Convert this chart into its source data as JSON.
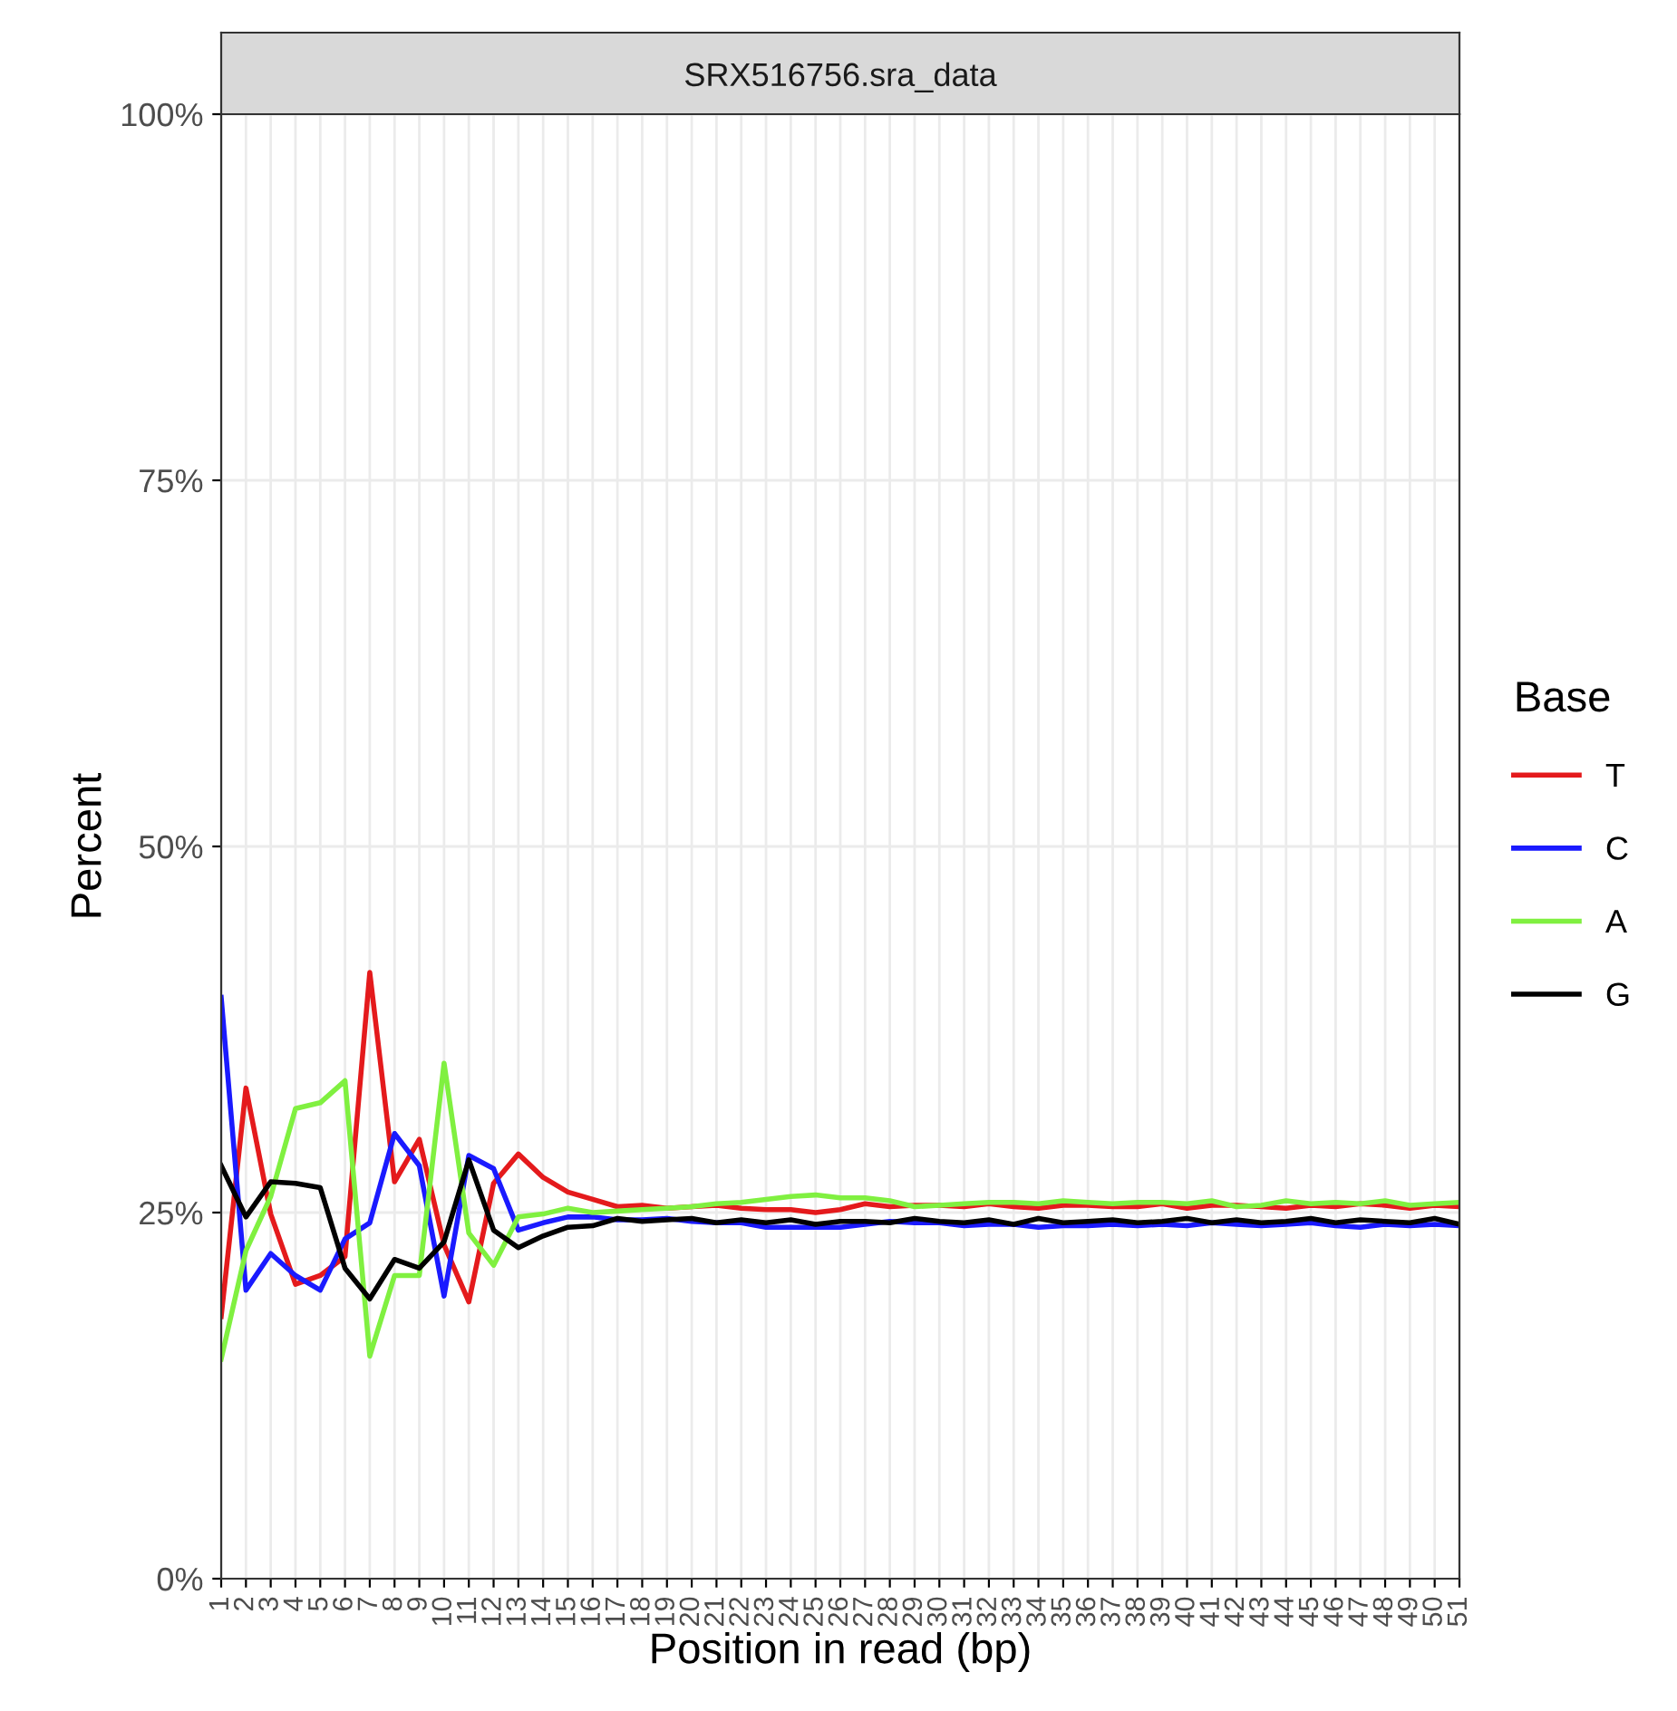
{
  "chart_data": {
    "type": "line",
    "title": "SRX516756.sra_data",
    "xlabel": "Position in read (bp)",
    "ylabel": "Percent",
    "legend_title": "Base",
    "categories": [
      "1",
      "2",
      "3",
      "4",
      "5",
      "6",
      "7",
      "8",
      "9",
      "10",
      "11",
      "12",
      "13",
      "14",
      "15",
      "16",
      "17",
      "18",
      "19",
      "20",
      "21",
      "22",
      "23",
      "24",
      "25",
      "26",
      "27",
      "28",
      "29",
      "30",
      "31",
      "32",
      "33",
      "34",
      "35",
      "36",
      "37",
      "38",
      "39",
      "40",
      "41",
      "42",
      "43",
      "44",
      "45",
      "46",
      "47",
      "48",
      "49",
      "50",
      "51"
    ],
    "ylim": [
      0,
      100
    ],
    "yticks": [
      {
        "value": 0,
        "label": "0%"
      },
      {
        "value": 25,
        "label": "25%"
      },
      {
        "value": 50,
        "label": "50%"
      },
      {
        "value": 75,
        "label": "75%"
      },
      {
        "value": 100,
        "label": "100%"
      }
    ],
    "grid": true,
    "legend": "right",
    "line_style": "solid",
    "marker": "none",
    "series": [
      {
        "name": "T",
        "color": "#e41a1c",
        "values": [
          17.9,
          33.5,
          24.9,
          20.1,
          20.7,
          22.0,
          41.4,
          27.1,
          30.0,
          22.8,
          18.9,
          27.0,
          29.0,
          27.4,
          26.4,
          25.9,
          25.4,
          25.5,
          25.3,
          25.4,
          25.5,
          25.3,
          25.2,
          25.2,
          25.0,
          25.2,
          25.6,
          25.4,
          25.5,
          25.5,
          25.4,
          25.6,
          25.4,
          25.3,
          25.5,
          25.5,
          25.4,
          25.4,
          25.6,
          25.3,
          25.5,
          25.5,
          25.4,
          25.3,
          25.5,
          25.4,
          25.6,
          25.5,
          25.3,
          25.5,
          25.4
        ]
      },
      {
        "name": "C",
        "color": "#1a1aff",
        "values": [
          39.7,
          19.7,
          22.2,
          20.7,
          19.7,
          23.2,
          24.3,
          30.4,
          28.2,
          19.3,
          28.9,
          28.0,
          23.8,
          24.3,
          24.7,
          24.7,
          24.5,
          24.5,
          24.6,
          24.4,
          24.3,
          24.3,
          24.0,
          24.0,
          24.0,
          24.0,
          24.2,
          24.4,
          24.3,
          24.3,
          24.1,
          24.2,
          24.2,
          24.0,
          24.1,
          24.1,
          24.2,
          24.1,
          24.2,
          24.1,
          24.3,
          24.2,
          24.1,
          24.2,
          24.3,
          24.1,
          24.0,
          24.2,
          24.1,
          24.2,
          24.1
        ]
      },
      {
        "name": "A",
        "color": "#80f040",
        "values": [
          15.0,
          22.4,
          26.1,
          32.1,
          32.5,
          34.0,
          15.2,
          20.7,
          20.7,
          35.2,
          23.6,
          21.4,
          24.7,
          24.9,
          25.3,
          25.0,
          25.1,
          25.2,
          25.3,
          25.4,
          25.6,
          25.7,
          25.9,
          26.1,
          26.2,
          26.0,
          26.0,
          25.8,
          25.4,
          25.5,
          25.6,
          25.7,
          25.7,
          25.6,
          25.8,
          25.7,
          25.6,
          25.7,
          25.7,
          25.6,
          25.8,
          25.4,
          25.5,
          25.8,
          25.6,
          25.7,
          25.6,
          25.8,
          25.5,
          25.6,
          25.7
        ]
      },
      {
        "name": "G",
        "color": "#000000",
        "values": [
          28.2,
          24.7,
          27.1,
          27.0,
          26.7,
          21.2,
          19.1,
          21.8,
          21.2,
          23.0,
          28.6,
          23.8,
          22.6,
          23.4,
          24.0,
          24.1,
          24.6,
          24.4,
          24.5,
          24.6,
          24.3,
          24.5,
          24.3,
          24.5,
          24.2,
          24.4,
          24.4,
          24.3,
          24.6,
          24.4,
          24.3,
          24.5,
          24.2,
          24.6,
          24.3,
          24.4,
          24.5,
          24.3,
          24.4,
          24.6,
          24.3,
          24.5,
          24.3,
          24.4,
          24.6,
          24.3,
          24.5,
          24.4,
          24.3,
          24.6,
          24.2
        ]
      }
    ]
  }
}
